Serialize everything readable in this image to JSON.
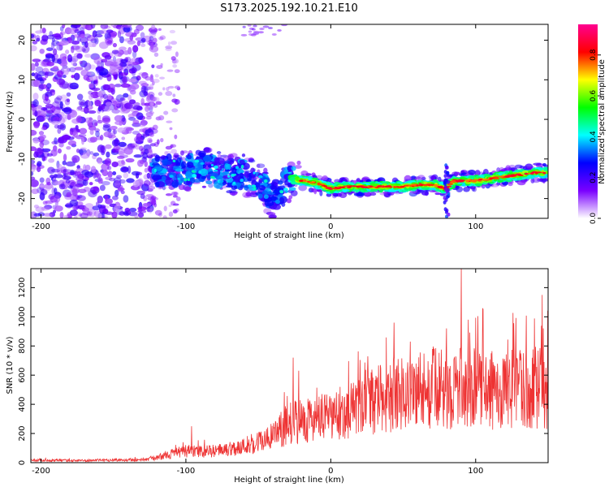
{
  "title": "S173.2025.192.10.21.E10",
  "chart_data": [
    {
      "type": "heatmap",
      "xlabel": "Height of straight line (km)",
      "ylabel": "Frequency (Hz)",
      "xlim": [
        -207,
        150
      ],
      "ylim": [
        -25,
        24
      ],
      "x_ticks": [
        -200,
        -100,
        0,
        100
      ],
      "x_tick_labels": [
        "-200",
        "-100",
        "0",
        "100"
      ],
      "y_ticks": [
        20,
        10,
        0,
        -10,
        -20
      ],
      "y_tick_labels": [
        "20",
        "10",
        "0",
        "-10",
        "-20"
      ],
      "colorbar": {
        "label": "Normalized spectral amplitude",
        "range": [
          0,
          0.95
        ],
        "ticks": [
          0.0,
          0.2,
          0.4,
          0.6,
          0.8
        ],
        "tick_labels": [
          "0.0",
          "0.2",
          "0.4",
          "0.6",
          "0.8"
        ],
        "colormap": [
          "#ffffff",
          "#7a00ff",
          "#0000ff",
          "#00ffff",
          "#00ff00",
          "#ffff00",
          "#ff0000",
          "#ff0090"
        ]
      },
      "ridge": {
        "description_series": "dominant frequency vs height",
        "x": [
          -125,
          -110,
          -100,
          -90,
          -80,
          -70,
          -60,
          -50,
          -40,
          -30,
          -25,
          -20,
          -10,
          0,
          10,
          20,
          30,
          40,
          50,
          60,
          70,
          80,
          85,
          90,
          100,
          110,
          120,
          130,
          140,
          150
        ],
        "y": [
          -13,
          -13,
          -13,
          -12,
          -13,
          -14,
          -14,
          -16,
          -20,
          -16,
          -15,
          -15.5,
          -16,
          -17.5,
          -17,
          -17,
          -17,
          -17,
          -17,
          -16.5,
          -16.5,
          -17.5,
          -15.5,
          -15.5,
          -15.5,
          -15,
          -14.5,
          -14,
          -13.5,
          -13.5
        ]
      }
    },
    {
      "type": "line",
      "xlabel": "Height of straight line (km)",
      "ylabel": "SNR (10 * v/v)",
      "xlim": [
        -207,
        150
      ],
      "ylim": [
        0,
        1330
      ],
      "x_ticks": [
        -200,
        -100,
        0,
        100
      ],
      "x_tick_labels": [
        "-200",
        "-100",
        "0",
        "100"
      ],
      "y_ticks": [
        0,
        200,
        400,
        600,
        800,
        1000,
        1200
      ],
      "y_tick_labels": [
        "0",
        "200",
        "400",
        "600",
        "800",
        "1000",
        "1200"
      ],
      "color": "#ee3333",
      "envelope": {
        "x": [
          -207,
          -190,
          -170,
          -150,
          -130,
          -120,
          -110,
          -100,
          -90,
          -80,
          -70,
          -60,
          -50,
          -40,
          -35,
          -30,
          -25,
          -20,
          -15,
          -10,
          0,
          10,
          20,
          30,
          40,
          50,
          60,
          70,
          80,
          90,
          100,
          110,
          120,
          130,
          140,
          150
        ],
        "y": [
          15,
          15,
          15,
          18,
          20,
          35,
          60,
          80,
          75,
          80,
          95,
          110,
          140,
          180,
          220,
          260,
          280,
          300,
          300,
          290,
          310,
          350,
          380,
          420,
          460,
          480,
          500,
          510,
          500,
          520,
          510,
          500,
          480,
          500,
          520,
          500
        ]
      },
      "spikes": [
        {
          "x": -96,
          "y": 250
        },
        {
          "x": -26,
          "y": 720
        },
        {
          "x": -22,
          "y": 630
        },
        {
          "x": 55,
          "y": 830
        },
        {
          "x": 80,
          "y": 920
        },
        {
          "x": 90,
          "y": 1330
        },
        {
          "x": 95,
          "y": 980
        },
        {
          "x": 146,
          "y": 1150
        }
      ]
    }
  ]
}
